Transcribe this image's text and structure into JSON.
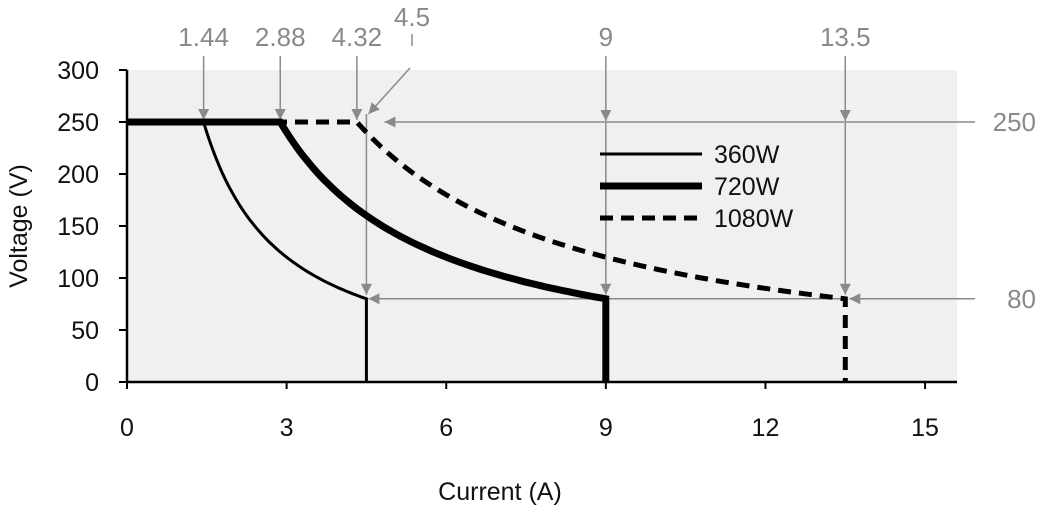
{
  "chart_data": {
    "type": "line",
    "title": "",
    "xlabel": "Current (A)",
    "ylabel": "Voltage (V)",
    "xlim": [
      0,
      15.6
    ],
    "ylim": [
      0,
      300
    ],
    "x_ticks": [
      0,
      3,
      6,
      9,
      12,
      15
    ],
    "y_ticks": [
      0,
      50,
      100,
      150,
      200,
      250,
      300
    ],
    "grid": false,
    "legend_placement": "upper-middle-right",
    "plot_background": "#f0f0f0",
    "annotation_color": "#8a8a8a",
    "series": [
      {
        "name": "360W",
        "power_w": 360,
        "v_max": 250,
        "v_min": 80,
        "i_max": 4.5,
        "style": "solid-thin",
        "color": "#000000"
      },
      {
        "name": "720W",
        "power_w": 720,
        "v_max": 250,
        "v_min": 80,
        "i_max": 9,
        "style": "solid-thick",
        "color": "#000000"
      },
      {
        "name": "1080W",
        "power_w": 1080,
        "v_max": 250,
        "v_min": 80,
        "i_max": 13.5,
        "style": "dashed",
        "color": "#000000"
      }
    ],
    "top_annotations": [
      "1.44",
      "2.88",
      "4.32",
      "4.5",
      "9",
      "13.5"
    ],
    "right_annotations": [
      "250",
      "80"
    ]
  }
}
